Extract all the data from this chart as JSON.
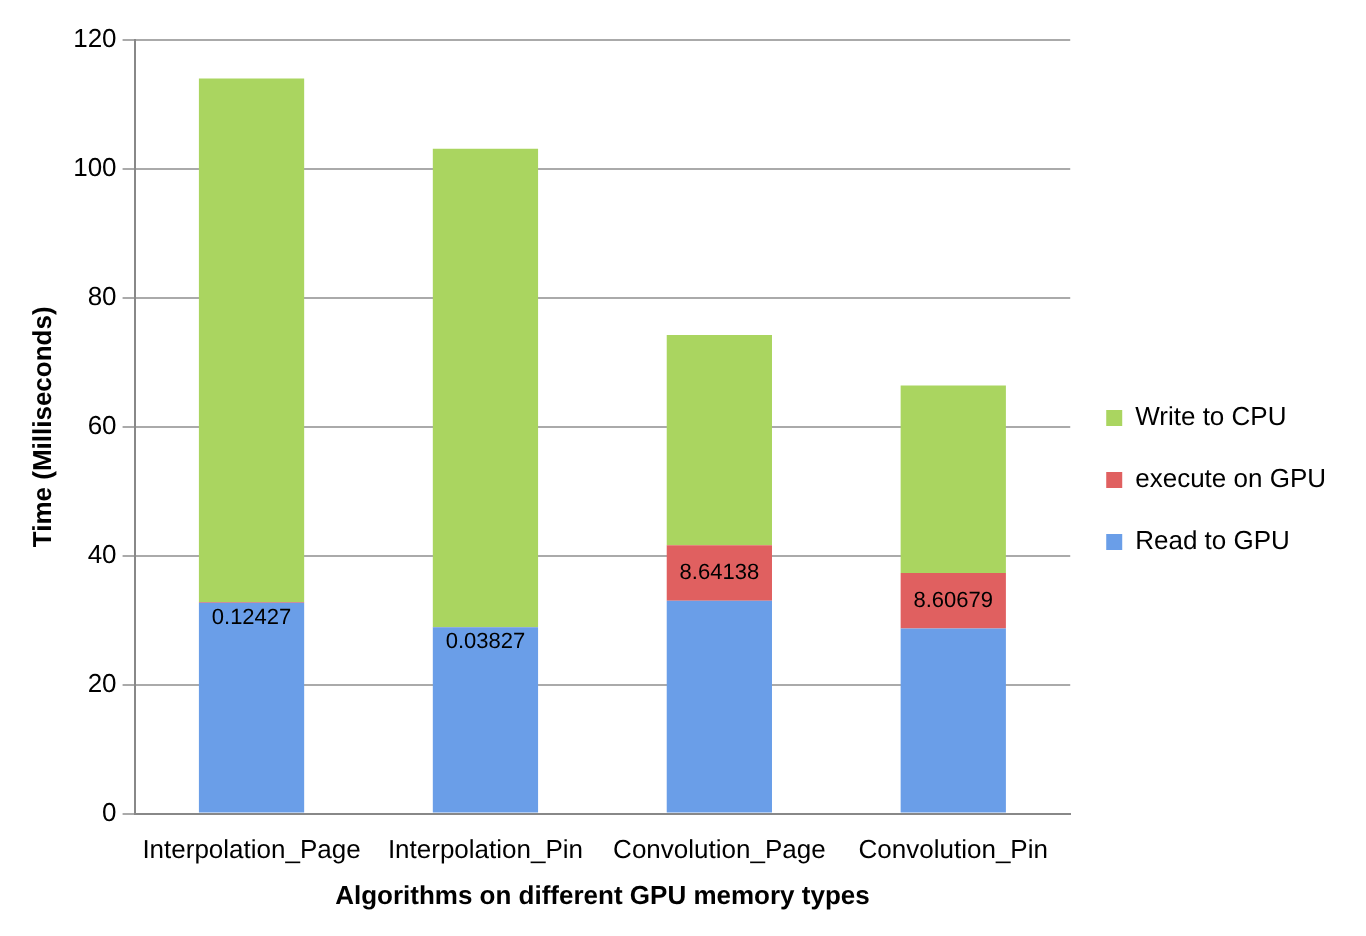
{
  "chart_data": {
    "type": "bar",
    "stacked": true,
    "xlabel": "Algorithms on different GPU memory types",
    "ylabel": "Time (Milliseconds)",
    "categories": [
      "Interpolation_Page",
      "Interpolation_Pin",
      "Convolution_Page",
      "Convolution_Pin"
    ],
    "series": [
      {
        "name": "Read to GPU",
        "color": "#6a9ee8",
        "values": [
          32.7,
          28.9,
          33.0,
          28.7
        ]
      },
      {
        "name": "execute on GPU",
        "color": "#e06060",
        "values": [
          0.12427,
          0.03827,
          8.64138,
          8.60679
        ],
        "value_labels": [
          "0.12427",
          "0.03827",
          "8.64138",
          "8.60679"
        ]
      },
      {
        "name": "Write to CPU",
        "color": "#aad560",
        "values": [
          81.2,
          74.2,
          32.6,
          29.1
        ]
      }
    ],
    "ylim": [
      0,
      120
    ],
    "yticks": [
      0,
      20,
      40,
      60,
      80,
      100,
      120
    ],
    "grid": "y",
    "legend": "right"
  }
}
